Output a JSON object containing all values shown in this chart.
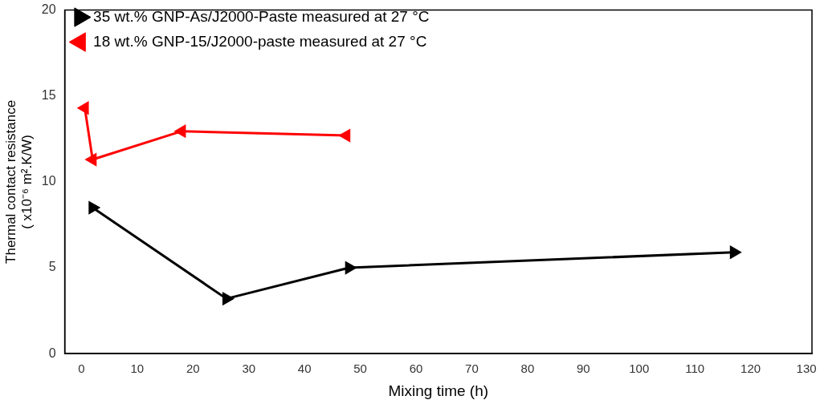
{
  "chart_data": {
    "type": "line",
    "xlabel": "Mixing time (h)",
    "ylabel": "Thermal contact resistance\n( x10⁻⁶ m².K/W)",
    "xlim": [
      -3,
      131
    ],
    "xticks": [
      0,
      10,
      20,
      30,
      40,
      50,
      60,
      70,
      80,
      90,
      100,
      110,
      120,
      130
    ],
    "ylim": [
      0,
      20
    ],
    "yticks": [
      0,
      5,
      10,
      15,
      20
    ],
    "series": [
      {
        "name": "35 wt.% GNP-As/J2000-Paste measured at 27 °C",
        "color": "#000000",
        "x": [
          2,
          26,
          48,
          117
        ],
        "values": [
          8.5,
          3.2,
          5.0,
          5.9
        ]
      },
      {
        "name": "18 wt.% GNP-15/J2000-paste measured at 27 °C",
        "color": "#ff0000",
        "x": [
          0.6,
          2,
          18,
          47.5
        ],
        "values": [
          14.3,
          11.3,
          12.95,
          12.7
        ]
      }
    ],
    "marker": "triangle",
    "line_style": "solid",
    "grid": false,
    "legend": "top left"
  }
}
